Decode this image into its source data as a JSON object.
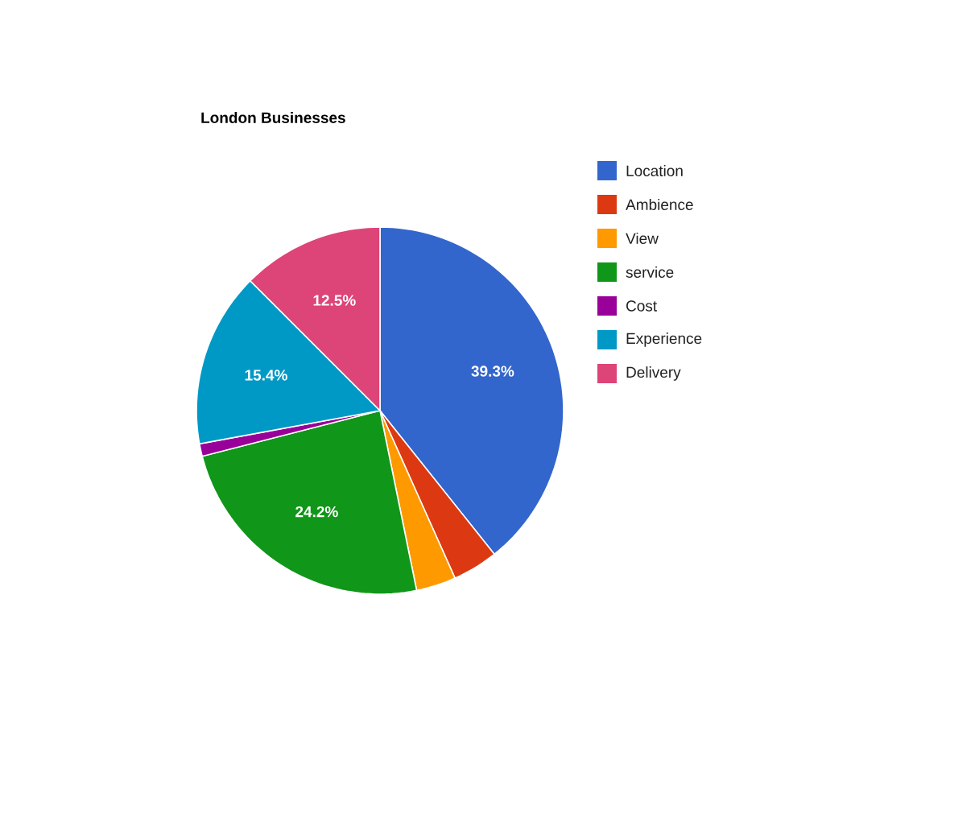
{
  "chart_data": {
    "type": "pie",
    "title": "London Businesses",
    "categories": [
      "Location",
      "Ambience",
      "View",
      "service",
      "Cost",
      "Experience",
      "Delivery"
    ],
    "values": [
      39.3,
      4.0,
      3.5,
      24.2,
      1.1,
      15.4,
      12.5
    ],
    "colors": [
      "#3366cc",
      "#dc3912",
      "#ff9900",
      "#109618",
      "#990099",
      "#0099c6",
      "#dd4477"
    ],
    "value_labels": [
      "39.3%",
      null,
      null,
      "24.2%",
      null,
      "15.4%",
      "12.5%"
    ],
    "legend": "right"
  }
}
